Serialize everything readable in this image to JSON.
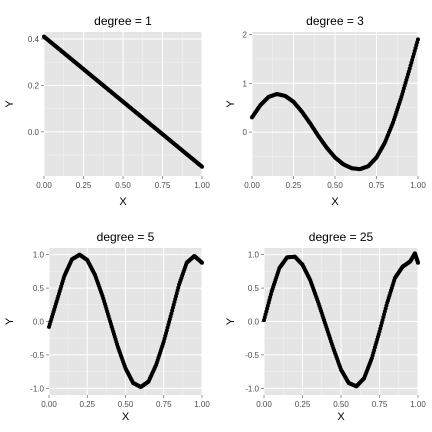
{
  "chart_data": [
    {
      "type": "scatter",
      "title": "degree = 1",
      "xlabel": "X",
      "ylabel": "Y",
      "xlim": [
        0,
        1
      ],
      "ylim": [
        -0.19,
        0.43
      ],
      "xticks": [
        "0.00",
        "0.25",
        "0.50",
        "0.75",
        "1.00"
      ],
      "yticks": [
        "0.0",
        "0.2",
        "0.4"
      ],
      "grid": true,
      "series": [
        {
          "color": "#000000",
          "x": [
            0.0,
            0.05,
            0.1,
            0.15,
            0.2,
            0.25,
            0.3,
            0.35,
            0.4,
            0.45,
            0.5,
            0.55,
            0.6,
            0.65,
            0.7,
            0.75,
            0.8,
            0.85,
            0.9,
            0.95,
            1.0
          ],
          "y": [
            0.41,
            0.382,
            0.354,
            0.326,
            0.298,
            0.27,
            0.242,
            0.214,
            0.186,
            0.158,
            0.13,
            0.102,
            0.074,
            0.046,
            0.018,
            -0.01,
            -0.038,
            -0.066,
            -0.094,
            -0.122,
            -0.15
          ]
        }
      ]
    },
    {
      "type": "scatter",
      "title": "degree = 3",
      "xlabel": "X",
      "ylabel": "Y",
      "xlim": [
        0,
        1
      ],
      "ylim": [
        -0.9,
        2.05
      ],
      "xticks": [
        "0.00",
        "0.25",
        "0.50",
        "0.75",
        "1.00"
      ],
      "yticks": [
        "0",
        "1",
        "2"
      ],
      "grid": true,
      "series": [
        {
          "color": "#000000",
          "x": [
            0.0,
            0.05,
            0.1,
            0.15,
            0.2,
            0.25,
            0.3,
            0.35,
            0.4,
            0.45,
            0.5,
            0.55,
            0.6,
            0.65,
            0.7,
            0.75,
            0.8,
            0.85,
            0.9,
            0.95,
            1.0
          ],
          "y": [
            0.3,
            0.55,
            0.72,
            0.78,
            0.74,
            0.62,
            0.42,
            0.18,
            -0.08,
            -0.32,
            -0.52,
            -0.66,
            -0.74,
            -0.76,
            -0.7,
            -0.52,
            -0.22,
            0.2,
            0.72,
            1.3,
            1.9
          ]
        }
      ]
    },
    {
      "type": "scatter",
      "title": "degree = 5",
      "xlabel": "X",
      "ylabel": "Y",
      "xlim": [
        0,
        1
      ],
      "ylim": [
        -1.1,
        1.1
      ],
      "xticks": [
        "0.00",
        "0.25",
        "0.50",
        "0.75",
        "1.00"
      ],
      "yticks": [
        "-1.0",
        "-0.5",
        "0.0",
        "0.5",
        "1.0"
      ],
      "grid": true,
      "series": [
        {
          "color": "#000000",
          "x": [
            0.0,
            0.05,
            0.1,
            0.15,
            0.2,
            0.25,
            0.3,
            0.35,
            0.4,
            0.45,
            0.5,
            0.55,
            0.6,
            0.65,
            0.7,
            0.75,
            0.8,
            0.85,
            0.9,
            0.95,
            1.0
          ],
          "y": [
            -0.08,
            0.3,
            0.68,
            0.93,
            1.0,
            0.92,
            0.7,
            0.38,
            0.0,
            -0.38,
            -0.7,
            -0.92,
            -0.98,
            -0.9,
            -0.65,
            -0.3,
            0.12,
            0.55,
            0.88,
            0.98,
            0.88
          ]
        }
      ]
    },
    {
      "type": "scatter",
      "title": "degree = 25",
      "xlabel": "X",
      "ylabel": "Y",
      "xlim": [
        0,
        1
      ],
      "ylim": [
        -1.1,
        1.1
      ],
      "xticks": [
        "0.00",
        "0.25",
        "0.50",
        "0.75",
        "1.00"
      ],
      "yticks": [
        "-1.0",
        "-0.5",
        "0.0",
        "0.5",
        "1.0"
      ],
      "grid": true,
      "series": [
        {
          "color": "#000000",
          "x": [
            0.0,
            0.05,
            0.1,
            0.15,
            0.2,
            0.25,
            0.3,
            0.35,
            0.4,
            0.45,
            0.5,
            0.55,
            0.6,
            0.65,
            0.7,
            0.75,
            0.8,
            0.85,
            0.9,
            0.95,
            0.98,
            1.0
          ],
          "y": [
            0.02,
            0.45,
            0.8,
            0.96,
            0.97,
            0.85,
            0.62,
            0.3,
            -0.05,
            -0.4,
            -0.72,
            -0.92,
            -0.97,
            -0.85,
            -0.55,
            -0.15,
            0.28,
            0.65,
            0.82,
            0.9,
            1.02,
            0.88
          ]
        }
      ]
    }
  ]
}
